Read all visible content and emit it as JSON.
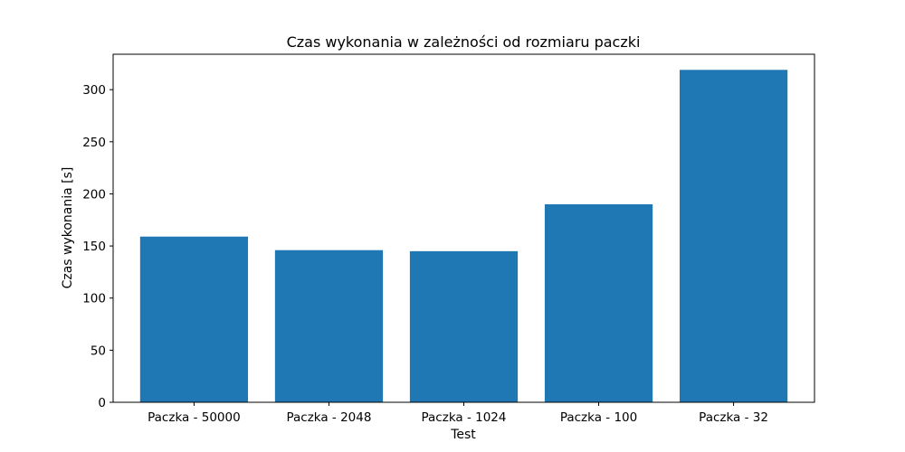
{
  "chart_data": {
    "type": "bar",
    "title": "Czas wykonania w zależności od rozmiaru paczki",
    "xlabel": "Test",
    "ylabel": "Czas wykonania [s]",
    "categories": [
      "Paczka - 50000",
      "Paczka - 2048",
      "Paczka - 1024",
      "Paczka - 100",
      "Paczka - 32"
    ],
    "values": [
      159,
      146,
      145,
      190,
      319
    ],
    "ylim": [
      0,
      334
    ],
    "yticks": [
      0,
      50,
      100,
      150,
      200,
      250,
      300
    ],
    "grid": false,
    "bar_color": "#1f77b4"
  }
}
